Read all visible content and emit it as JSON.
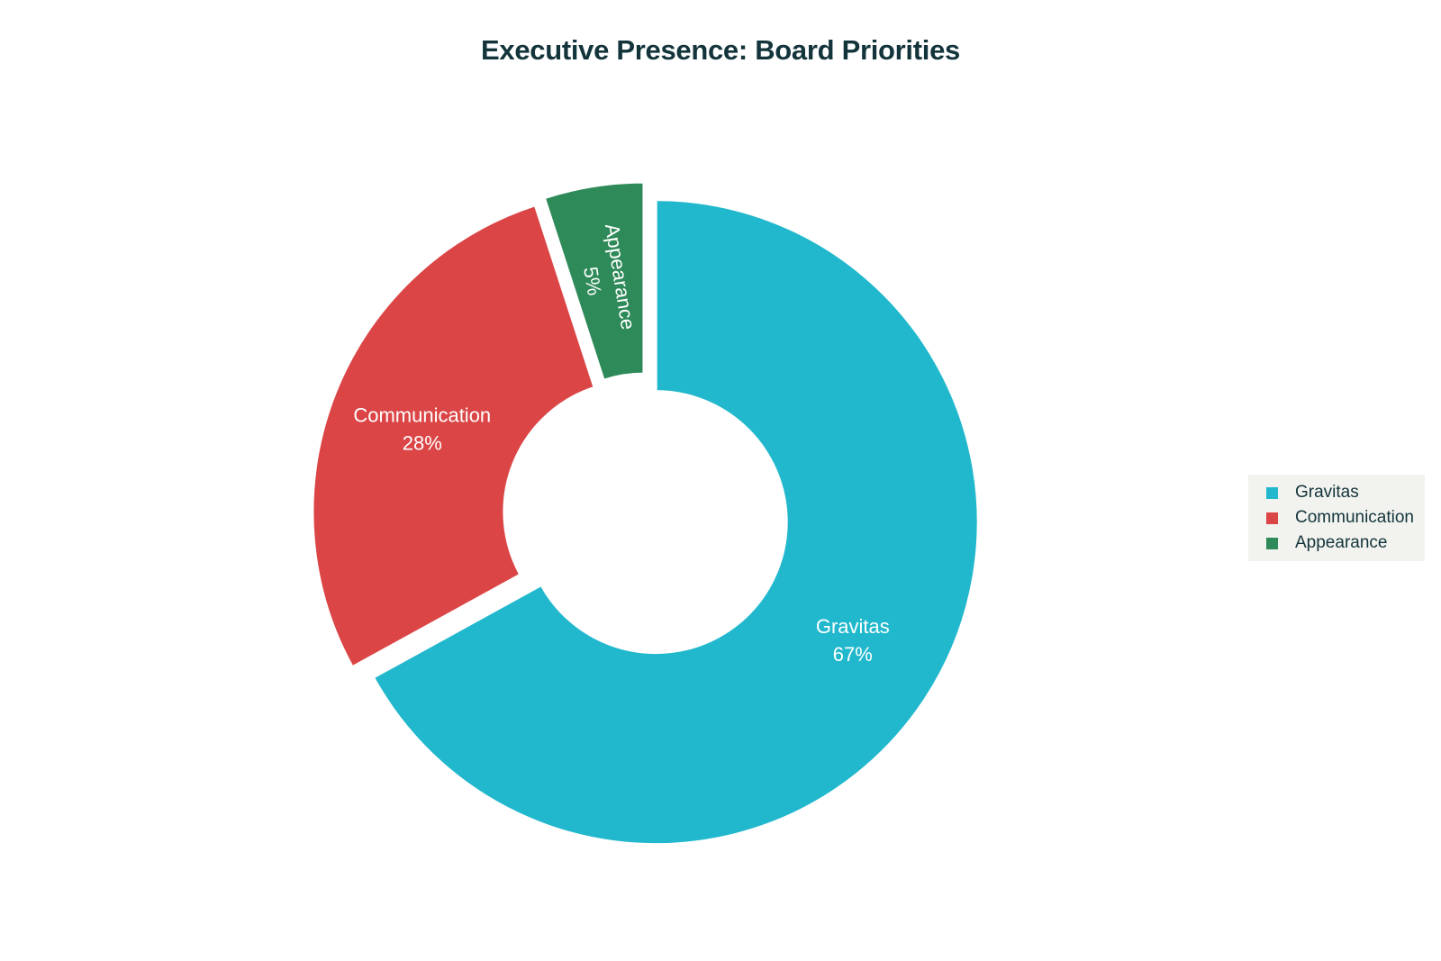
{
  "chart_data": {
    "type": "pie",
    "title": "Executive Presence: Board Priorities",
    "hole": true,
    "legend_position": "right",
    "slices": [
      {
        "label": "Gravitas",
        "value": 67,
        "display": "67%",
        "color": "#21b8cd"
      },
      {
        "label": "Communication",
        "value": 28,
        "display": "28%",
        "color": "#db4546"
      },
      {
        "label": "Appearance",
        "value": 5,
        "display": "5%",
        "color": "#2e8a58"
      }
    ]
  }
}
